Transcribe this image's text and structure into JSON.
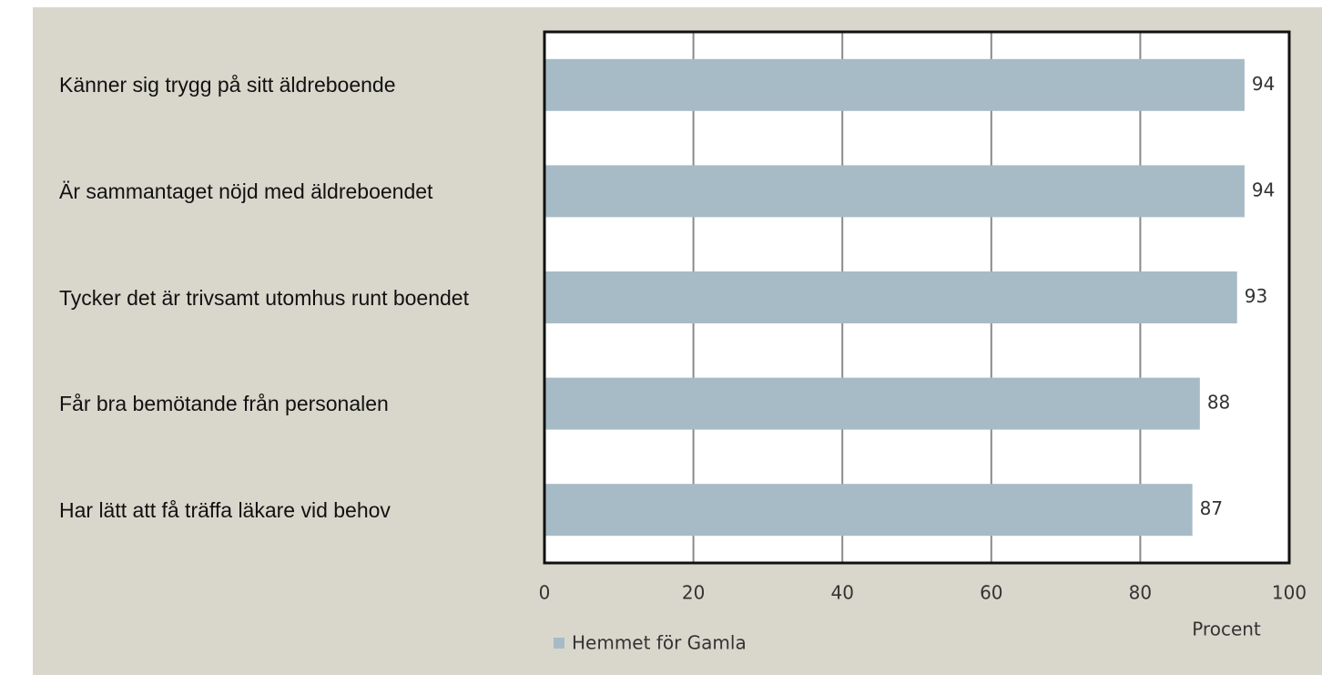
{
  "chart_data": {
    "type": "bar",
    "orientation": "horizontal",
    "categories": [
      "Känner sig trygg på sitt äldreboende",
      "Är sammantaget nöjd med äldreboendet",
      "Tycker det är trivsamt utomhus runt boendet",
      "Får bra bemötande från personalen",
      "Har lätt att få träffa läkare vid behov"
    ],
    "series": [
      {
        "name": "Hemmet för Gamla",
        "color": "#a7bbc6",
        "values": [
          94,
          94,
          93,
          88,
          87
        ]
      }
    ],
    "xlabel": "Procent",
    "xlim": [
      0,
      100
    ],
    "xticks": [
      0,
      20,
      40,
      60,
      80,
      100
    ],
    "grid": true
  }
}
